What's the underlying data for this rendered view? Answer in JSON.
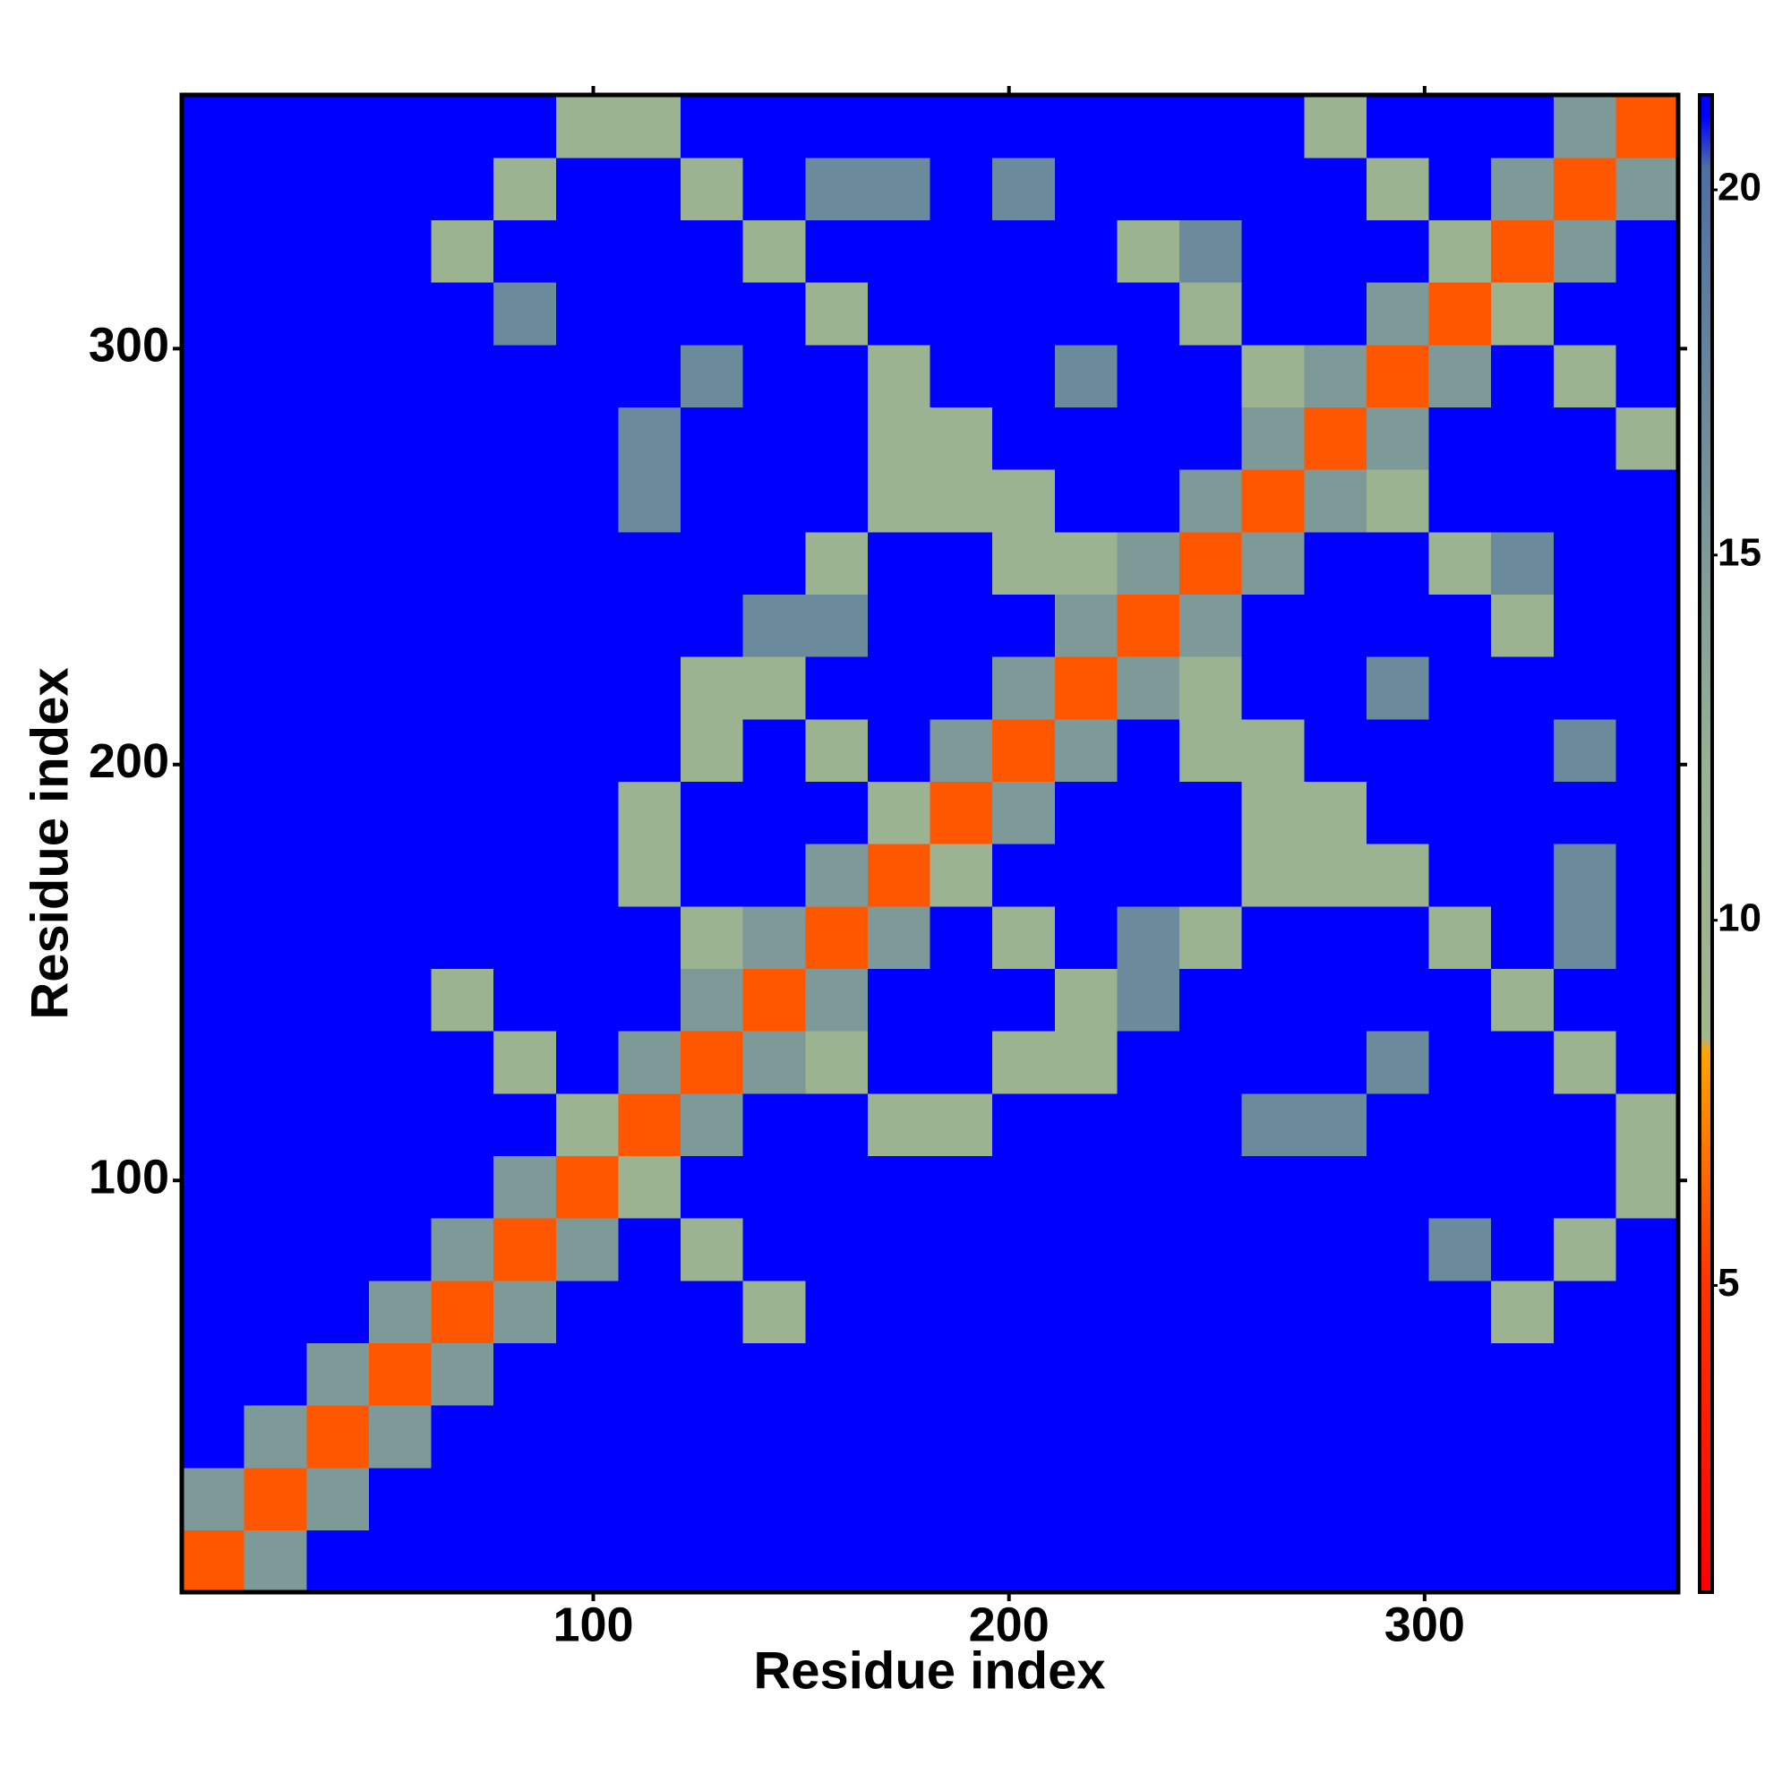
{
  "chart_data": {
    "type": "heatmap",
    "xlabel": "Residue index",
    "ylabel": "Residue index",
    "x": [
      8.5,
      23.5,
      38.5,
      53.5,
      68.5,
      83.5,
      98.5,
      113.5,
      128.5,
      143.5,
      158.5,
      173.5,
      188.5,
      203.5,
      218.5,
      233.5,
      248.5,
      263.5,
      278.5,
      293.5,
      308.5,
      323.5,
      338.5,
      353.5
    ],
    "y": [
      8.5,
      23.5,
      38.5,
      53.5,
      68.5,
      83.5,
      98.5,
      113.5,
      128.5,
      143.5,
      158.5,
      173.5,
      188.5,
      203.5,
      218.5,
      233.5,
      248.5,
      263.5,
      278.5,
      293.5,
      308.5,
      323.5,
      338.5,
      353.5
    ],
    "xlim": [
      1,
      361
    ],
    "ylim": [
      1,
      361
    ],
    "xticks": [
      100,
      200,
      300
    ],
    "yticks": [
      100,
      200,
      300
    ],
    "zlim": [
      0.8,
      21.3
    ],
    "zticks": [
      5,
      10,
      15,
      20
    ],
    "colorscale": [
      [
        0.8,
        "#ff0000"
      ],
      [
        5,
        "#ff3300"
      ],
      [
        8.2,
        "#ffa500"
      ],
      [
        8.4,
        "#a3b68a"
      ],
      [
        12,
        "#98b294"
      ],
      [
        20.3,
        "#4e6fa2"
      ],
      [
        21,
        "#0000ff"
      ],
      [
        21.3,
        "#0000ff"
      ]
    ],
    "values": [
      [
        6,
        15,
        21,
        21,
        21,
        21,
        21,
        21,
        21,
        21,
        21,
        21,
        21,
        21,
        21,
        21,
        21,
        21,
        21,
        21,
        21,
        21,
        21,
        21
      ],
      [
        15,
        6,
        15,
        21,
        21,
        21,
        21,
        21,
        21,
        21,
        21,
        21,
        21,
        21,
        21,
        21,
        21,
        21,
        21,
        21,
        21,
        21,
        21,
        21
      ],
      [
        21,
        15,
        6,
        15,
        21,
        21,
        21,
        21,
        21,
        21,
        21,
        21,
        21,
        21,
        21,
        21,
        21,
        21,
        21,
        21,
        21,
        21,
        21,
        21
      ],
      [
        21,
        21,
        15,
        6,
        15,
        21,
        21,
        21,
        21,
        21,
        21,
        21,
        21,
        21,
        21,
        21,
        21,
        21,
        21,
        21,
        21,
        21,
        21,
        21
      ],
      [
        21,
        21,
        21,
        15,
        6,
        15,
        21,
        21,
        21,
        11,
        21,
        21,
        21,
        21,
        21,
        21,
        21,
        21,
        21,
        21,
        21,
        11,
        21,
        21
      ],
      [
        21,
        21,
        21,
        21,
        15,
        6,
        15,
        21,
        11,
        21,
        21,
        21,
        21,
        21,
        21,
        21,
        21,
        21,
        21,
        21,
        17,
        21,
        11,
        21
      ],
      [
        21,
        21,
        21,
        21,
        21,
        15,
        6,
        11,
        21,
        21,
        21,
        21,
        21,
        21,
        21,
        21,
        21,
        21,
        21,
        21,
        21,
        21,
        21,
        11
      ],
      [
        21,
        21,
        21,
        21,
        21,
        21,
        11,
        6,
        15,
        21,
        21,
        11,
        11,
        21,
        21,
        21,
        21,
        17,
        17,
        21,
        21,
        21,
        21,
        11
      ],
      [
        21,
        21,
        21,
        21,
        21,
        11,
        21,
        15,
        6,
        15,
        11,
        21,
        21,
        11,
        11,
        21,
        21,
        21,
        21,
        17,
        21,
        21,
        11,
        21
      ],
      [
        21,
        21,
        21,
        21,
        11,
        21,
        21,
        21,
        15,
        6,
        15,
        21,
        21,
        21,
        11,
        17,
        21,
        21,
        21,
        21,
        21,
        11,
        21,
        21
      ],
      [
        21,
        21,
        21,
        21,
        21,
        21,
        21,
        21,
        11,
        15,
        6,
        15,
        21,
        11,
        21,
        17,
        11,
        21,
        21,
        21,
        11,
        21,
        17,
        21
      ],
      [
        21,
        21,
        21,
        21,
        21,
        21,
        21,
        11,
        21,
        21,
        15,
        6,
        11,
        21,
        21,
        21,
        21,
        11,
        11,
        11,
        21,
        21,
        17,
        21
      ],
      [
        21,
        21,
        21,
        21,
        21,
        21,
        21,
        11,
        21,
        21,
        21,
        11,
        6,
        15,
        21,
        21,
        21,
        11,
        11,
        21,
        21,
        21,
        21,
        21
      ],
      [
        21,
        21,
        21,
        21,
        21,
        21,
        21,
        21,
        11,
        21,
        11,
        21,
        15,
        6,
        15,
        21,
        11,
        11,
        21,
        21,
        21,
        21,
        17,
        21
      ],
      [
        21,
        21,
        21,
        21,
        21,
        21,
        21,
        21,
        11,
        11,
        21,
        21,
        21,
        15,
        6,
        15,
        11,
        21,
        21,
        17,
        21,
        21,
        21,
        21
      ],
      [
        21,
        21,
        21,
        21,
        21,
        21,
        21,
        21,
        21,
        17,
        17,
        21,
        21,
        21,
        15,
        6,
        15,
        21,
        21,
        21,
        21,
        11,
        21,
        21
      ],
      [
        21,
        21,
        21,
        21,
        21,
        21,
        21,
        21,
        21,
        21,
        11,
        21,
        21,
        11,
        11,
        15,
        6,
        15,
        21,
        21,
        11,
        17,
        21,
        21
      ],
      [
        21,
        21,
        21,
        21,
        21,
        21,
        21,
        17,
        21,
        21,
        21,
        11,
        11,
        11,
        21,
        21,
        15,
        6,
        15,
        11,
        21,
        21,
        21,
        21
      ],
      [
        21,
        21,
        21,
        21,
        21,
        21,
        21,
        17,
        21,
        21,
        21,
        11,
        11,
        21,
        21,
        21,
        21,
        15,
        6,
        15,
        21,
        21,
        21,
        11
      ],
      [
        21,
        21,
        21,
        21,
        21,
        21,
        21,
        21,
        17,
        21,
        21,
        11,
        21,
        21,
        17,
        21,
        21,
        11,
        15,
        6,
        15,
        21,
        11,
        21
      ],
      [
        21,
        21,
        21,
        21,
        21,
        17,
        21,
        21,
        21,
        21,
        11,
        21,
        21,
        21,
        21,
        21,
        11,
        21,
        21,
        15,
        6,
        11,
        21,
        21
      ],
      [
        21,
        21,
        21,
        21,
        11,
        21,
        21,
        21,
        21,
        11,
        21,
        21,
        21,
        21,
        21,
        11,
        17,
        21,
        21,
        21,
        11,
        6,
        15,
        21
      ],
      [
        21,
        21,
        21,
        21,
        21,
        11,
        21,
        21,
        11,
        21,
        17,
        17,
        21,
        17,
        21,
        21,
        21,
        21,
        21,
        11,
        21,
        15,
        6,
        15
      ],
      [
        21,
        21,
        21,
        21,
        21,
        21,
        11,
        11,
        21,
        21,
        21,
        21,
        21,
        21,
        21,
        21,
        21,
        21,
        11,
        21,
        21,
        21,
        15,
        6
      ]
    ]
  }
}
